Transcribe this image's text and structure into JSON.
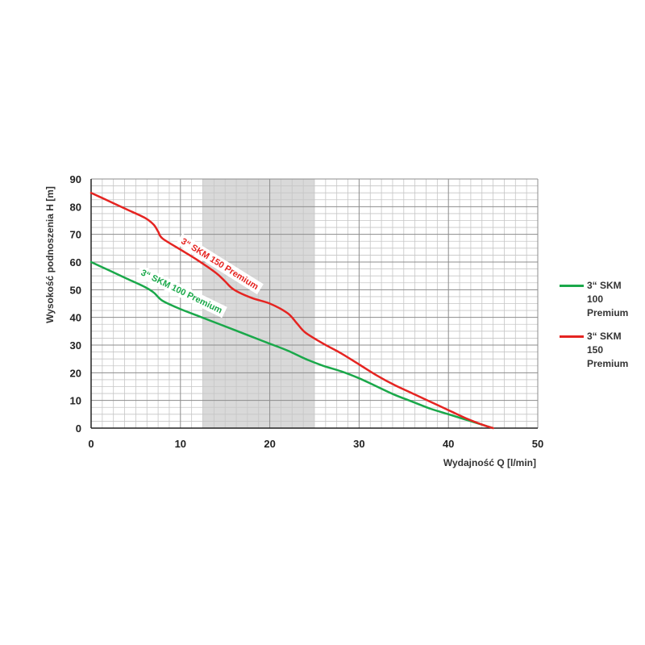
{
  "chart_data": {
    "type": "line",
    "title": "",
    "xlabel": "Wydajność Q [l/min]",
    "ylabel": "Wysokość podnoszenia H [m]",
    "xlim": [
      0,
      50
    ],
    "ylim": [
      0,
      90
    ],
    "x_ticks": [
      0,
      10,
      20,
      30,
      40,
      50
    ],
    "y_ticks": [
      0,
      10,
      20,
      30,
      40,
      50,
      60,
      70,
      80,
      90
    ],
    "grid": true,
    "legend_position": "right",
    "highlight_band": {
      "x_from": 12.5,
      "x_to": 25
    },
    "series": [
      {
        "name": "3“ SKM 100 Premium",
        "color": "#1aa84a",
        "annotation": "3“ SKM 100 Premium",
        "x": [
          0,
          2,
          4,
          6,
          7,
          8,
          10,
          12,
          14,
          16,
          18,
          20,
          22,
          24,
          26,
          28,
          30,
          32,
          34,
          36,
          38,
          40,
          42,
          44,
          45
        ],
        "y": [
          60,
          57,
          54,
          51,
          49,
          46,
          43,
          40.5,
          38,
          35.5,
          33,
          30.5,
          28,
          25,
          22.5,
          20.5,
          18,
          15,
          12,
          9.5,
          7,
          5,
          3,
          1,
          0
        ]
      },
      {
        "name": "3“ SKM 150 Premium",
        "color": "#e52421",
        "annotation": "3“ SKM 150 Premium",
        "x": [
          0,
          2,
          4,
          6,
          7,
          7.5,
          8,
          10,
          12,
          14,
          15,
          16,
          18,
          20,
          22,
          23,
          24,
          26,
          28,
          30,
          32,
          34,
          36,
          38,
          40,
          42,
          44,
          45
        ],
        "y": [
          85,
          82,
          79,
          76,
          73.5,
          71,
          68.5,
          64.5,
          60.5,
          56,
          53,
          50,
          47,
          45,
          41.5,
          38,
          34.5,
          30.5,
          27,
          23,
          19,
          15.5,
          12.5,
          9.5,
          6.5,
          3.5,
          1,
          0
        ]
      }
    ]
  }
}
